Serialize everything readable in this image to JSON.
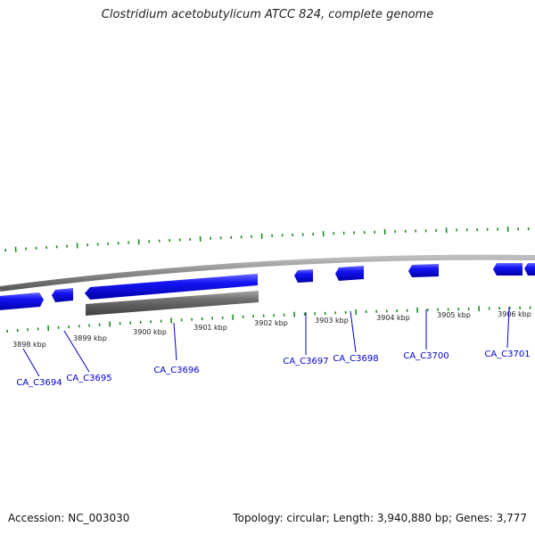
{
  "title": "Clostridium acetobutylicum ATCC 824, complete genome",
  "footer": {
    "accession": "Accession: NC_003030",
    "summary": "Topology: circular; Length: 3,940,880 bp; Genes: 3,777"
  },
  "colors": {
    "gene_forward": "#0000ee",
    "gene_reverse": "#666666",
    "backbone": "#888888",
    "tick": "#1a8c1a",
    "label_gene": "#0000cc",
    "label_pos": "#222222",
    "leader": "#0000cc"
  },
  "position_labels": [
    "3898 kbp",
    "3899 kbp",
    "3900 kbp",
    "3901 kbp",
    "3902 kbp",
    "3903 kbp",
    "3904 kbp",
    "3905 kbp",
    "3906 kbp"
  ],
  "gene_labels": [
    "CA_C3694",
    "CA_C3695",
    "CA_C3696",
    "CA_C3697",
    "CA_C3698",
    "CA_C3700",
    "CA_C3701"
  ]
}
